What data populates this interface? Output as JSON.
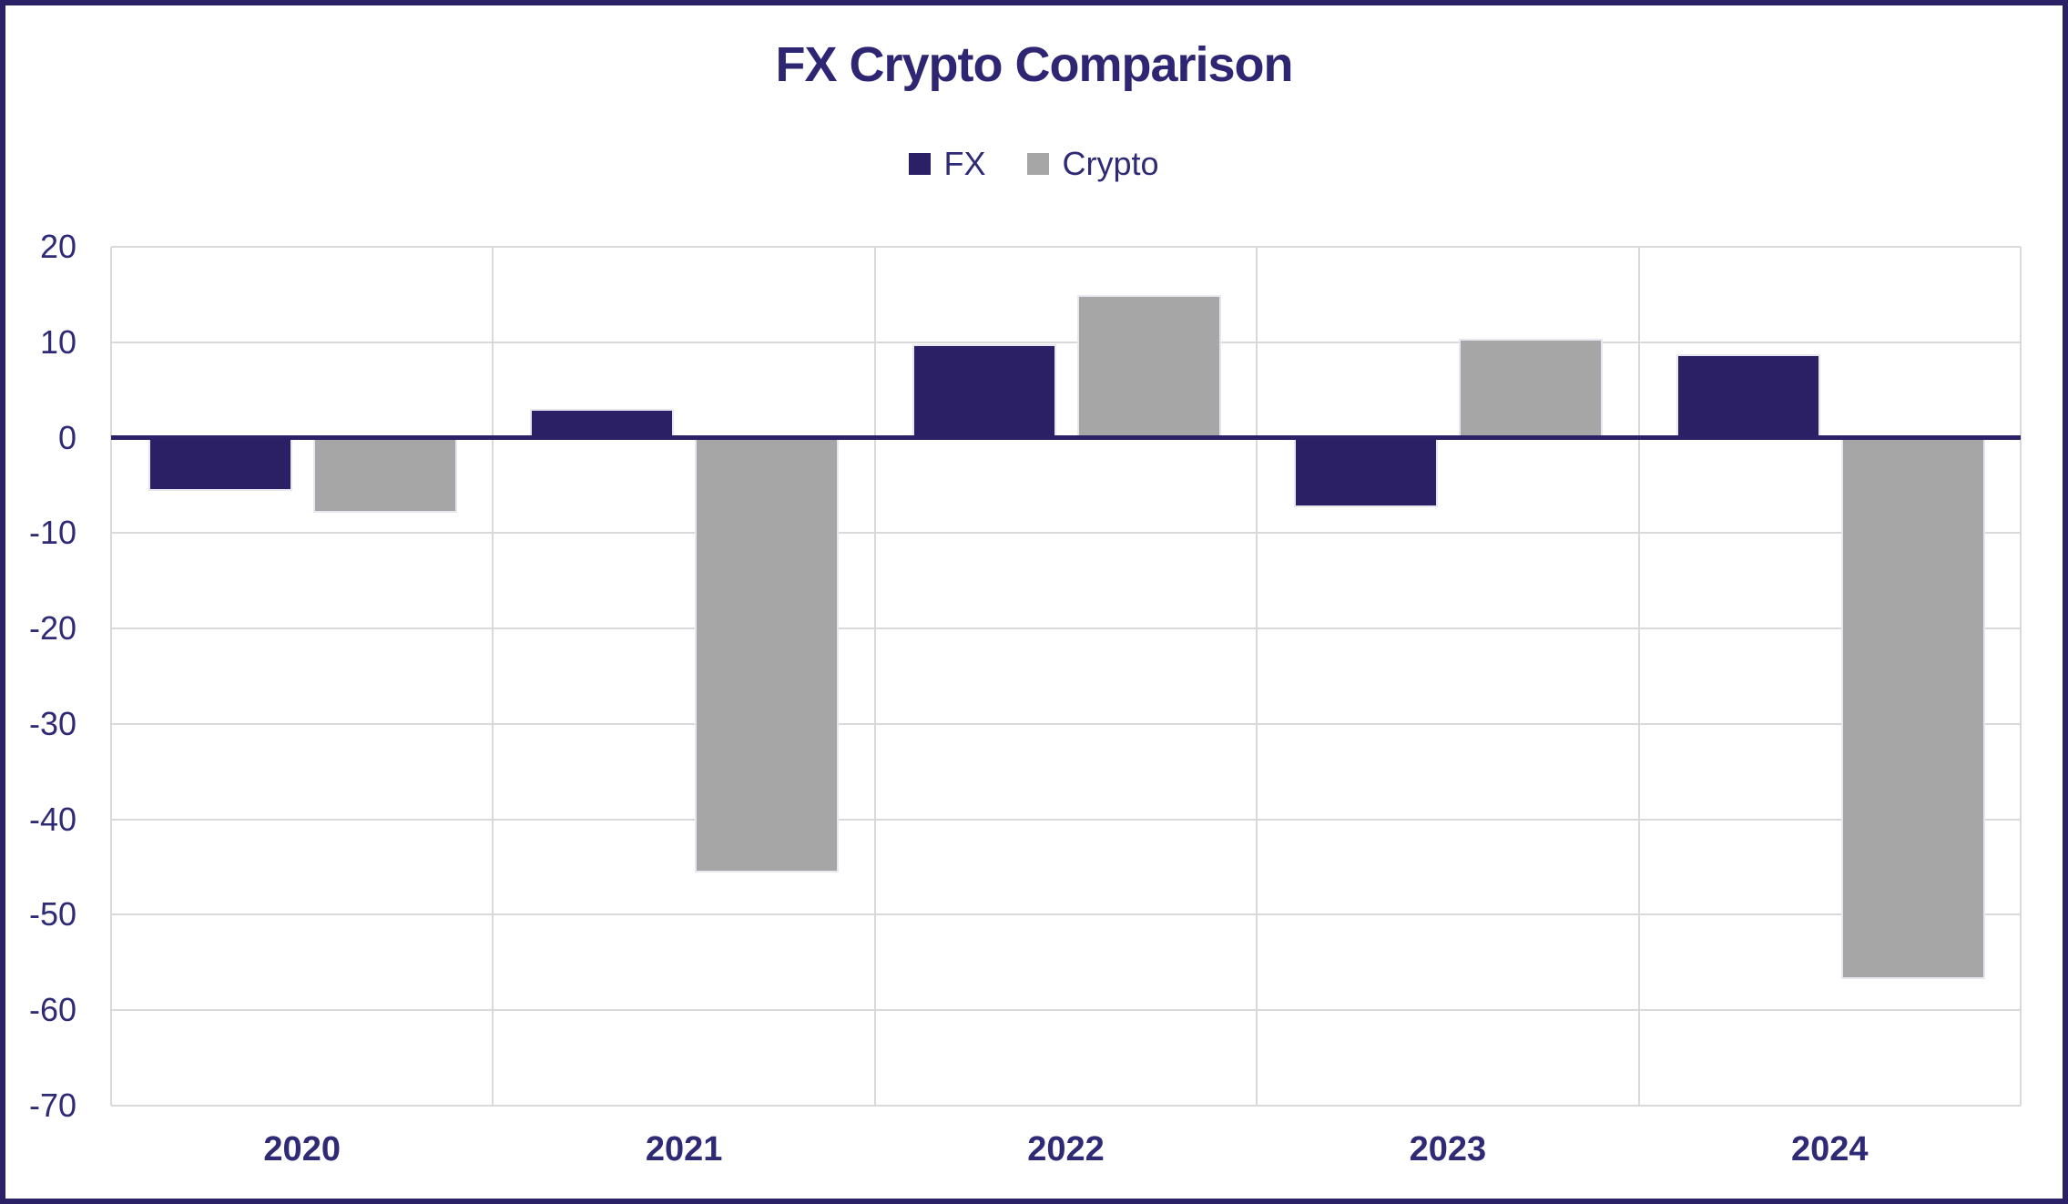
{
  "chart_data": {
    "type": "bar",
    "title": "FX Crypto Comparison",
    "categories": [
      "2020",
      "2021",
      "2022",
      "2023",
      "2024"
    ],
    "series": [
      {
        "name": "FX",
        "color": "#2B2066",
        "values": [
          -5.6,
          3.0,
          9.8,
          -7.3,
          8.7
        ]
      },
      {
        "name": "Crypto",
        "color": "#A6A6A6",
        "values": [
          -7.9,
          -45.6,
          14.9,
          10.4,
          -56.7
        ]
      }
    ],
    "xlabel": "",
    "ylabel": "",
    "ylim": [
      -70,
      20
    ],
    "y_ticks": [
      20,
      10,
      0,
      -10,
      -20,
      -30,
      -40,
      -50,
      -60,
      -70
    ],
    "grid": true,
    "legend_position": "top",
    "zero_axis_line": true,
    "colors": {
      "fx_bar": "#2B2066",
      "crypto_bar": "#A6A6A6",
      "text_navy": "#2F2A76",
      "title_navy": "#2E2673",
      "gridline": "#D9D9D9",
      "border": "#2B2167",
      "zero_line": "#2B2167",
      "background": "#FFFFFF"
    }
  }
}
